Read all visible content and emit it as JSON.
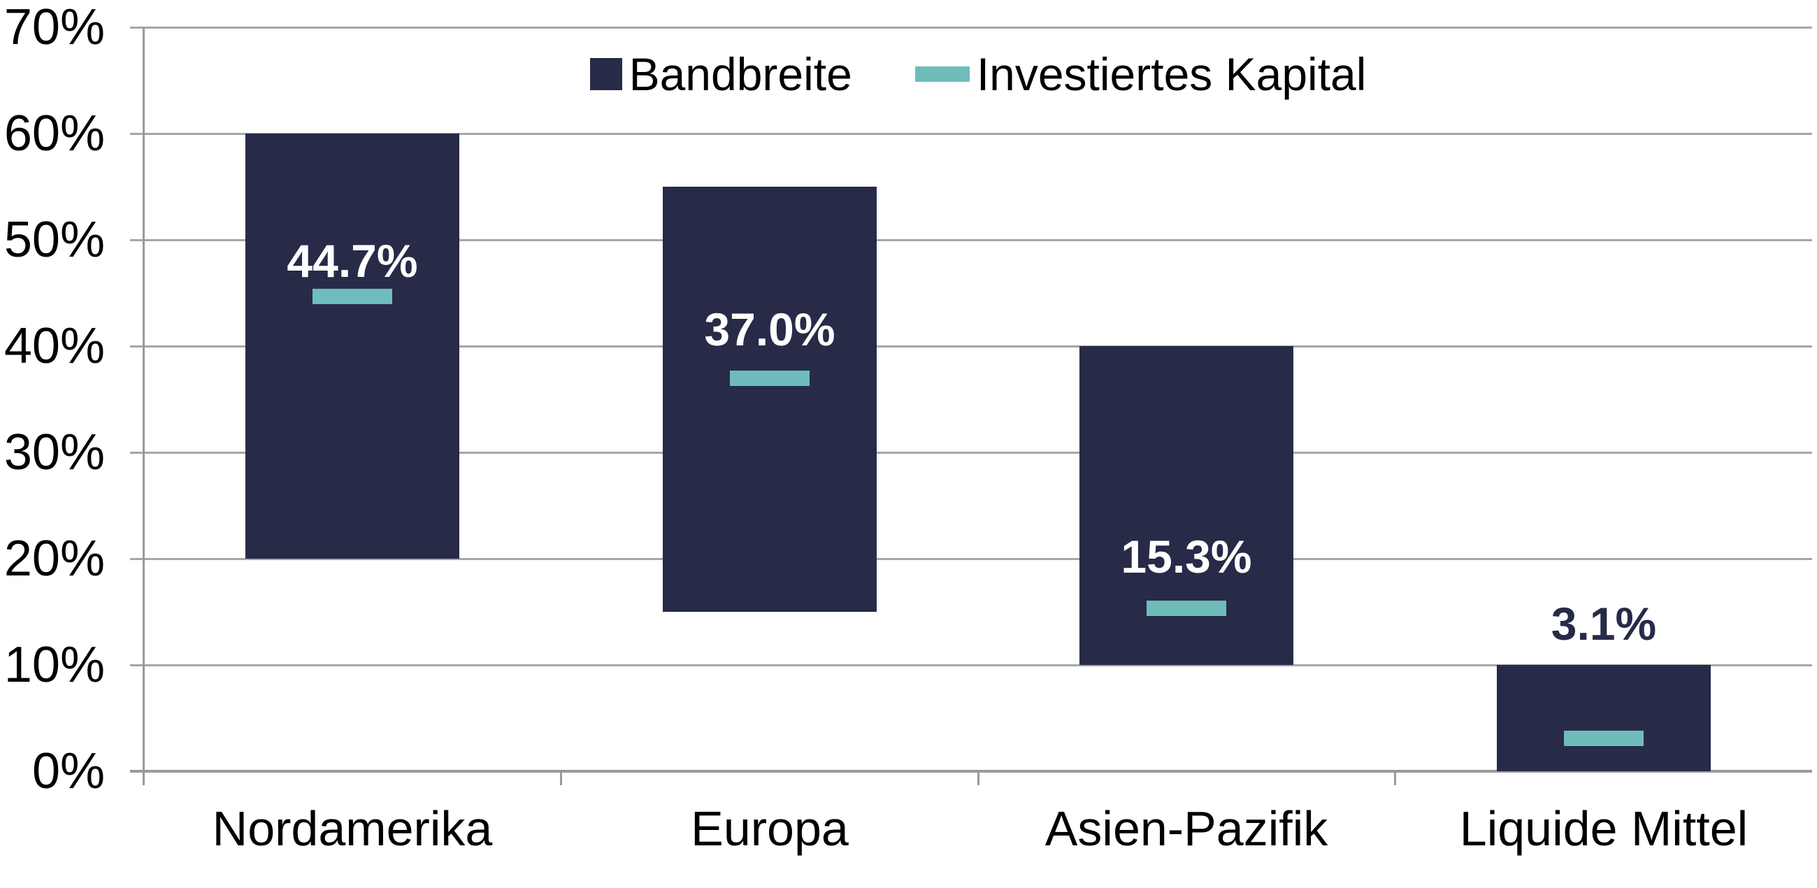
{
  "chart_data": {
    "type": "bar",
    "subtype": "floating-range-bars-with-dash-markers",
    "title": "",
    "categories": [
      "Nordamerika",
      "Europa",
      "Asien-Pazifik",
      "Liquide Mittel"
    ],
    "series": [
      {
        "name": "Bandbreite",
        "type": "range-bar",
        "color": "#272B48",
        "ranges": [
          {
            "low": 20,
            "high": 60
          },
          {
            "low": 15,
            "high": 55
          },
          {
            "low": 10,
            "high": 40
          },
          {
            "low": 0,
            "high": 10
          }
        ]
      },
      {
        "name": "Investiertes Kapital",
        "type": "dash-marker",
        "color": "#6FBDBB",
        "values": [
          44.7,
          37.0,
          15.3,
          3.1
        ]
      }
    ],
    "data_labels": [
      {
        "text": "44.7%",
        "color": "#FFFFFF",
        "y_pct": 48.0
      },
      {
        "text": "37.0%",
        "color": "#FFFFFF",
        "y_pct": 41.6
      },
      {
        "text": "15.3%",
        "color": "#FFFFFF",
        "y_pct": 20.2
      },
      {
        "text": "3.1%",
        "color": "#272B48",
        "y_pct": 13.9
      }
    ],
    "y_axis": {
      "min": 0,
      "max": 70,
      "tick_step": 10,
      "tick_labels": [
        "0%",
        "10%",
        "20%",
        "30%",
        "40%",
        "50%",
        "60%",
        "70%"
      ]
    },
    "x_axis": {
      "tick_marks_between_categories": true
    },
    "grid": {
      "horizontal": true,
      "color": "#A6A6A6"
    },
    "axis_color": "#9A9A9A",
    "text_color": "#000000",
    "legend": {
      "position": "top-center",
      "entries": [
        {
          "label": "Bandbreite",
          "swatch": "square",
          "color": "#272B48"
        },
        {
          "label": "Investiertes Kapital",
          "swatch": "dash",
          "color": "#6FBDBB"
        }
      ]
    }
  }
}
